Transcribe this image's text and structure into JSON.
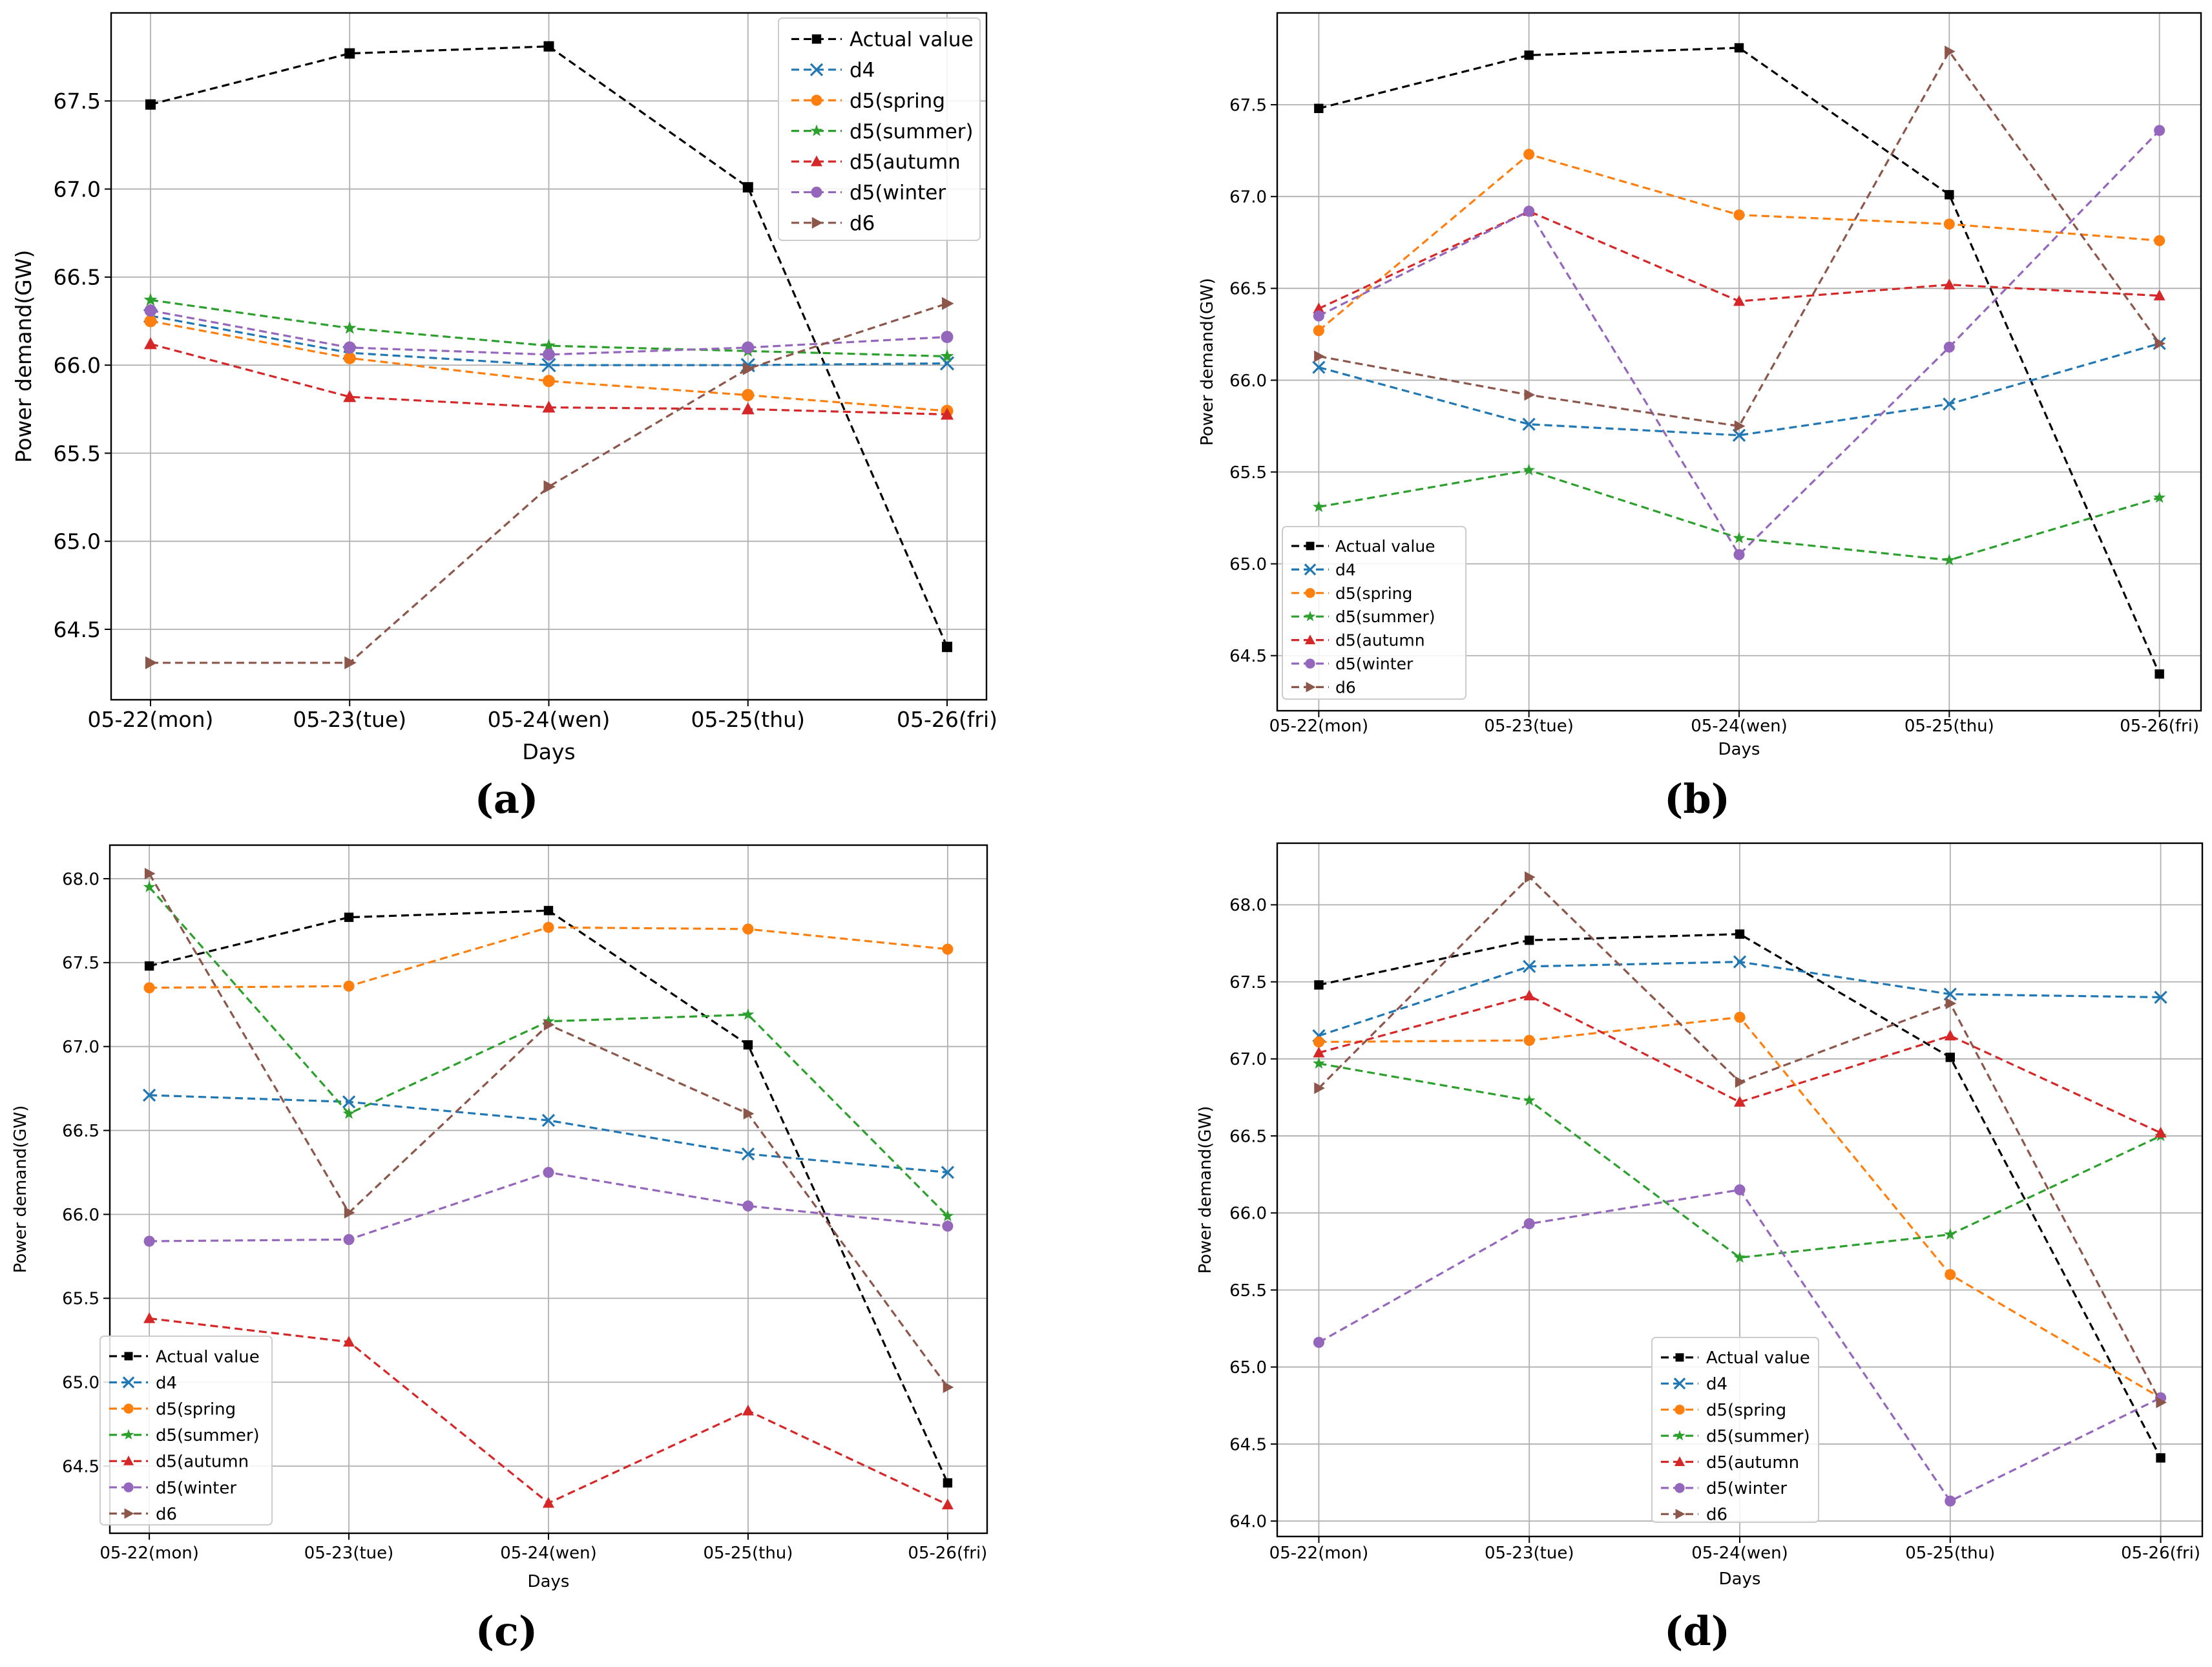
{
  "figure": {
    "categories": [
      "05-22(mon)",
      "05-23(tue)",
      "05-24(wen)",
      "05-25(thu)",
      "05-26(fri)"
    ],
    "xlabel": "Days",
    "ylabel": "Power demand(GW)",
    "series_styles": [
      {
        "name": "Actual value",
        "color": "#000000",
        "marker": "square"
      },
      {
        "name": "d4",
        "color": "#1f77b4",
        "marker": "x"
      },
      {
        "name": "d5(spring",
        "color": "#ff7f0e",
        "marker": "circle"
      },
      {
        "name": "d5(summer)",
        "color": "#2ca02c",
        "marker": "star"
      },
      {
        "name": "d5(autumn",
        "color": "#d62728",
        "marker": "triangle-up"
      },
      {
        "name": "d5(winter",
        "color": "#9467bd",
        "marker": "circle"
      },
      {
        "name": "d6",
        "color": "#8c564b",
        "marker": "triangle-right"
      }
    ]
  },
  "chart_data": [
    {
      "panel": "(a)",
      "type": "line",
      "xlabel": "Days",
      "ylabel": "Power demand(GW)",
      "categories": [
        "05-22(mon)",
        "05-23(tue)",
        "05-24(wen)",
        "05-25(thu)",
        "05-26(fri)"
      ],
      "ylim": [
        64.1,
        68.0
      ],
      "yticks": [
        "64.5",
        "65.0",
        "65.5",
        "66.0",
        "66.5",
        "67.0",
        "67.5"
      ],
      "legend": "top-right",
      "grid": true,
      "series": [
        {
          "name": "Actual value",
          "values": [
            67.48,
            67.77,
            67.81,
            67.01,
            64.4
          ]
        },
        {
          "name": "d4",
          "values": [
            66.28,
            66.07,
            66.0,
            66.0,
            66.01
          ]
        },
        {
          "name": "d5(spring",
          "values": [
            66.25,
            66.04,
            65.91,
            65.83,
            65.74
          ]
        },
        {
          "name": "d5(summer)",
          "values": [
            66.37,
            66.21,
            66.11,
            66.08,
            66.05
          ]
        },
        {
          "name": "d5(autumn",
          "values": [
            66.12,
            65.82,
            65.76,
            65.75,
            65.72
          ]
        },
        {
          "name": "d5(winter",
          "values": [
            66.31,
            66.1,
            66.06,
            66.1,
            66.16
          ]
        },
        {
          "name": "d6",
          "values": [
            64.31,
            64.31,
            65.31,
            65.98,
            66.35
          ]
        }
      ]
    },
    {
      "panel": "(b)",
      "type": "line",
      "xlabel": "Days",
      "ylabel": "Power demand(GW)",
      "categories": [
        "05-22(mon)",
        "05-23(tue)",
        "05-24(wen)",
        "05-25(thu)",
        "05-26(fri)"
      ],
      "ylim": [
        64.2,
        68.0
      ],
      "yticks": [
        "64.5",
        "65.0",
        "65.5",
        "66.0",
        "66.5",
        "67.0",
        "67.5"
      ],
      "legend": "bottom-left",
      "grid": true,
      "series": [
        {
          "name": "Actual value",
          "values": [
            67.48,
            67.77,
            67.81,
            67.01,
            64.4
          ]
        },
        {
          "name": "d4",
          "values": [
            66.07,
            65.76,
            65.7,
            65.87,
            66.2
          ]
        },
        {
          "name": "d5(spring",
          "values": [
            66.27,
            67.23,
            66.9,
            66.85,
            66.76
          ]
        },
        {
          "name": "d5(summer)",
          "values": [
            65.31,
            65.51,
            65.14,
            65.02,
            65.36
          ]
        },
        {
          "name": "d5(autumn",
          "values": [
            66.39,
            66.92,
            66.43,
            66.52,
            66.46
          ]
        },
        {
          "name": "d5(winter",
          "values": [
            66.35,
            66.92,
            65.05,
            66.18,
            67.36
          ]
        },
        {
          "name": "d6",
          "values": [
            66.13,
            65.92,
            65.75,
            67.79,
            66.2
          ]
        }
      ]
    },
    {
      "panel": "(c)",
      "type": "line",
      "xlabel": "Days",
      "ylabel": "Power demand(GW)",
      "categories": [
        "05-22(mon)",
        "05-23(tue)",
        "05-24(wen)",
        "05-25(thu)",
        "05-26(fri)"
      ],
      "ylim": [
        64.1,
        68.2
      ],
      "yticks": [
        "64.5",
        "65.0",
        "65.5",
        "66.0",
        "66.5",
        "67.0",
        "67.5",
        "68.0"
      ],
      "legend": "bottom-left",
      "grid": true,
      "series": [
        {
          "name": "Actual value",
          "values": [
            67.48,
            67.77,
            67.81,
            67.01,
            64.4
          ]
        },
        {
          "name": "d4",
          "values": [
            66.71,
            66.67,
            66.56,
            66.36,
            66.25
          ]
        },
        {
          "name": "d5(spring",
          "values": [
            67.35,
            67.36,
            67.71,
            67.7,
            67.58
          ]
        },
        {
          "name": "d5(summer)",
          "values": [
            67.95,
            66.6,
            67.15,
            67.19,
            65.99
          ]
        },
        {
          "name": "d5(autumn",
          "values": [
            65.38,
            65.24,
            64.28,
            64.83,
            64.27
          ]
        },
        {
          "name": "d5(winter",
          "values": [
            65.84,
            65.85,
            66.25,
            66.05,
            65.93
          ]
        },
        {
          "name": "d6",
          "values": [
            68.03,
            66.01,
            67.13,
            66.6,
            64.97
          ]
        }
      ]
    },
    {
      "panel": "(d)",
      "type": "line",
      "xlabel": "Days",
      "ylabel": "Power demand(GW)",
      "categories": [
        "05-22(mon)",
        "05-23(tue)",
        "05-24(wen)",
        "05-25(thu)",
        "05-26(fri)"
      ],
      "ylim": [
        63.9,
        68.4
      ],
      "yticks": [
        "64.0",
        "64.5",
        "65.0",
        "65.5",
        "66.0",
        "66.5",
        "67.0",
        "67.5",
        "68.0"
      ],
      "legend": "bottom-center",
      "grid": true,
      "series": [
        {
          "name": "Actual value",
          "values": [
            67.48,
            67.77,
            67.81,
            67.01,
            64.41
          ]
        },
        {
          "name": "d4",
          "values": [
            67.15,
            67.6,
            67.63,
            67.42,
            67.4
          ]
        },
        {
          "name": "d5(spring",
          "values": [
            67.11,
            67.12,
            67.27,
            65.6,
            64.8
          ]
        },
        {
          "name": "d5(summer)",
          "values": [
            66.97,
            66.73,
            65.71,
            65.86,
            66.5
          ]
        },
        {
          "name": "d5(autumn",
          "values": [
            67.04,
            67.41,
            66.72,
            67.15,
            66.52
          ]
        },
        {
          "name": "d5(winter",
          "values": [
            65.16,
            65.93,
            66.15,
            64.13,
            64.8
          ]
        },
        {
          "name": "d6",
          "values": [
            66.81,
            68.18,
            66.85,
            67.36,
            64.77
          ]
        }
      ]
    }
  ]
}
